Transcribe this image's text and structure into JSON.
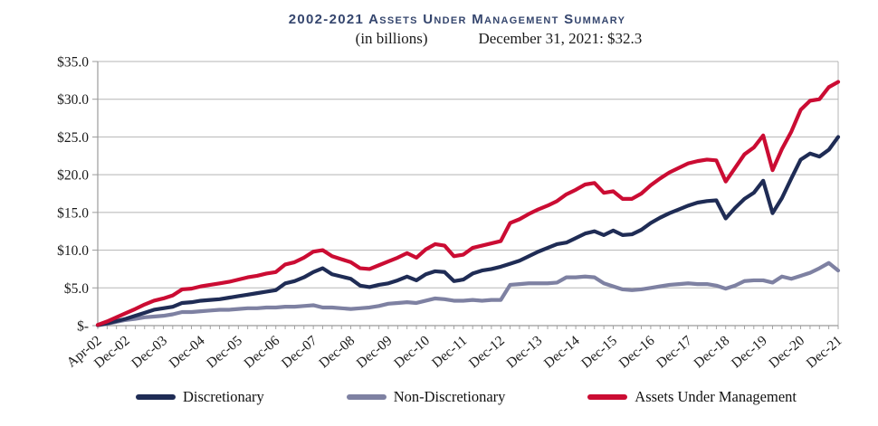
{
  "header": {
    "title": "2002-2021 Assets Under Management Summary",
    "subtitle_unit": "(in billions)",
    "subtitle_value": "December 31, 2021: $32.3"
  },
  "colors": {
    "title": "#35466e",
    "grid": "#b5b5b5",
    "axis": "#9b9b9b",
    "tick_text": "#1a1a1a",
    "discretionary": "#1f2c55",
    "non_discretionary": "#7e81a2",
    "aum": "#cb0c33"
  },
  "chart_data": {
    "type": "line",
    "title": "2002-2021 Assets Under Management Summary",
    "subtitle": "(in billions)   December 31, 2021: $32.3",
    "unit": "USD billions",
    "grid": true,
    "legend_position": "bottom",
    "ylim": [
      0,
      35
    ],
    "y_tick_labels": [
      "$35.0",
      "$30.0",
      "$25.0",
      "$20.0",
      "$15.0",
      "$10.0",
      "$5.0",
      "$-"
    ],
    "y_tick_values": [
      35,
      30,
      25,
      20,
      15,
      10,
      5,
      0
    ],
    "x_axis_label_ticks": [
      "Apr-02",
      "Dec-02",
      "Dec-03",
      "Dec-04",
      "Dec-05",
      "Dec-06",
      "Dec-07",
      "Dec-08",
      "Dec-09",
      "Dec-10",
      "Dec-11",
      "Dec-12",
      "Dec-13",
      "Dec-14",
      "Dec-15",
      "Dec-16",
      "Dec-17",
      "Dec-18",
      "Dec-19",
      "Dec-20",
      "Dec-21"
    ],
    "x_label_point_indices": [
      0,
      3,
      7,
      11,
      15,
      19,
      23,
      27,
      31,
      35,
      39,
      43,
      47,
      51,
      55,
      59,
      63,
      67,
      71,
      75,
      79
    ],
    "x": [
      "Apr-02",
      "Jun-02",
      "Sep-02",
      "Dec-02",
      "Mar-03",
      "Jun-03",
      "Sep-03",
      "Dec-03",
      "Mar-04",
      "Jun-04",
      "Sep-04",
      "Dec-04",
      "Mar-05",
      "Jun-05",
      "Sep-05",
      "Dec-05",
      "Mar-06",
      "Jun-06",
      "Sep-06",
      "Dec-06",
      "Mar-07",
      "Jun-07",
      "Sep-07",
      "Dec-07",
      "Mar-08",
      "Jun-08",
      "Sep-08",
      "Dec-08",
      "Mar-09",
      "Jun-09",
      "Sep-09",
      "Dec-09",
      "Mar-10",
      "Jun-10",
      "Sep-10",
      "Dec-10",
      "Mar-11",
      "Jun-11",
      "Sep-11",
      "Dec-11",
      "Mar-12",
      "Jun-12",
      "Sep-12",
      "Dec-12",
      "Mar-13",
      "Jun-13",
      "Sep-13",
      "Dec-13",
      "Mar-14",
      "Jun-14",
      "Sep-14",
      "Dec-14",
      "Mar-15",
      "Jun-15",
      "Sep-15",
      "Dec-15",
      "Mar-16",
      "Jun-16",
      "Sep-16",
      "Dec-16",
      "Mar-17",
      "Jun-17",
      "Sep-17",
      "Dec-17",
      "Mar-18",
      "Jun-18",
      "Sep-18",
      "Dec-18",
      "Mar-19",
      "Jun-19",
      "Sep-19",
      "Dec-19",
      "Mar-20",
      "Jun-20",
      "Sep-20",
      "Dec-20",
      "Mar-21",
      "Jun-21",
      "Sep-21",
      "Dec-21"
    ],
    "series": [
      {
        "name": "Discretionary",
        "color_key": "discretionary",
        "values": [
          0.05,
          0.3,
          0.6,
          0.9,
          1.3,
          1.7,
          2.1,
          2.3,
          2.5,
          3.0,
          3.1,
          3.3,
          3.4,
          3.5,
          3.7,
          3.9,
          4.1,
          4.3,
          4.5,
          4.7,
          5.6,
          5.9,
          6.4,
          7.1,
          7.6,
          6.8,
          6.5,
          6.2,
          5.3,
          5.1,
          5.4,
          5.6,
          6.0,
          6.5,
          6.0,
          6.8,
          7.2,
          7.1,
          5.9,
          6.1,
          6.9,
          7.3,
          7.5,
          7.8,
          8.2,
          8.6,
          9.2,
          9.8,
          10.3,
          10.8,
          11.0,
          11.6,
          12.2,
          12.5,
          12.0,
          12.6,
          12.0,
          12.1,
          12.7,
          13.6,
          14.3,
          14.9,
          15.4,
          15.9,
          16.3,
          16.5,
          16.6,
          14.2,
          15.6,
          16.8,
          17.6,
          19.2,
          14.9,
          16.9,
          19.5,
          22.0,
          22.8,
          22.4,
          23.3,
          25.0
        ]
      },
      {
        "name": "Non-Discretionary",
        "color_key": "non_discretionary",
        "values": [
          0.05,
          0.25,
          0.5,
          0.75,
          0.9,
          1.1,
          1.2,
          1.3,
          1.5,
          1.8,
          1.8,
          1.9,
          2.0,
          2.1,
          2.1,
          2.2,
          2.3,
          2.3,
          2.4,
          2.4,
          2.5,
          2.5,
          2.6,
          2.7,
          2.4,
          2.4,
          2.3,
          2.2,
          2.3,
          2.4,
          2.6,
          2.9,
          3.0,
          3.1,
          3.0,
          3.3,
          3.6,
          3.5,
          3.3,
          3.3,
          3.4,
          3.3,
          3.4,
          3.4,
          5.4,
          5.5,
          5.6,
          5.6,
          5.6,
          5.7,
          6.4,
          6.4,
          6.5,
          6.4,
          5.6,
          5.2,
          4.8,
          4.7,
          4.8,
          5.0,
          5.2,
          5.4,
          5.5,
          5.6,
          5.5,
          5.5,
          5.3,
          4.9,
          5.3,
          5.9,
          6.0,
          6.0,
          5.7,
          6.5,
          6.2,
          6.6,
          7.0,
          7.6,
          8.3,
          7.3
        ]
      },
      {
        "name": "Assets Under Management",
        "color_key": "aum",
        "values": [
          0.1,
          0.55,
          1.1,
          1.65,
          2.2,
          2.8,
          3.3,
          3.6,
          4.0,
          4.8,
          4.9,
          5.2,
          5.4,
          5.6,
          5.8,
          6.1,
          6.4,
          6.6,
          6.9,
          7.1,
          8.1,
          8.4,
          9.0,
          9.8,
          10.0,
          9.2,
          8.8,
          8.4,
          7.6,
          7.5,
          8.0,
          8.5,
          9.0,
          9.6,
          9.0,
          10.1,
          10.8,
          10.6,
          9.2,
          9.4,
          10.3,
          10.6,
          10.9,
          11.2,
          13.6,
          14.1,
          14.8,
          15.4,
          15.9,
          16.5,
          17.4,
          18.0,
          18.7,
          18.9,
          17.6,
          17.8,
          16.8,
          16.8,
          17.5,
          18.6,
          19.5,
          20.3,
          20.9,
          21.5,
          21.8,
          22.0,
          21.9,
          19.1,
          20.9,
          22.7,
          23.6,
          25.2,
          20.6,
          23.4,
          25.7,
          28.6,
          29.8,
          30.0,
          31.6,
          32.3
        ]
      }
    ],
    "legend": [
      "Discretionary",
      "Non-Discretionary",
      "Assets Under Management"
    ],
    "final_value_label": "December 31, 2021: $32.3"
  }
}
